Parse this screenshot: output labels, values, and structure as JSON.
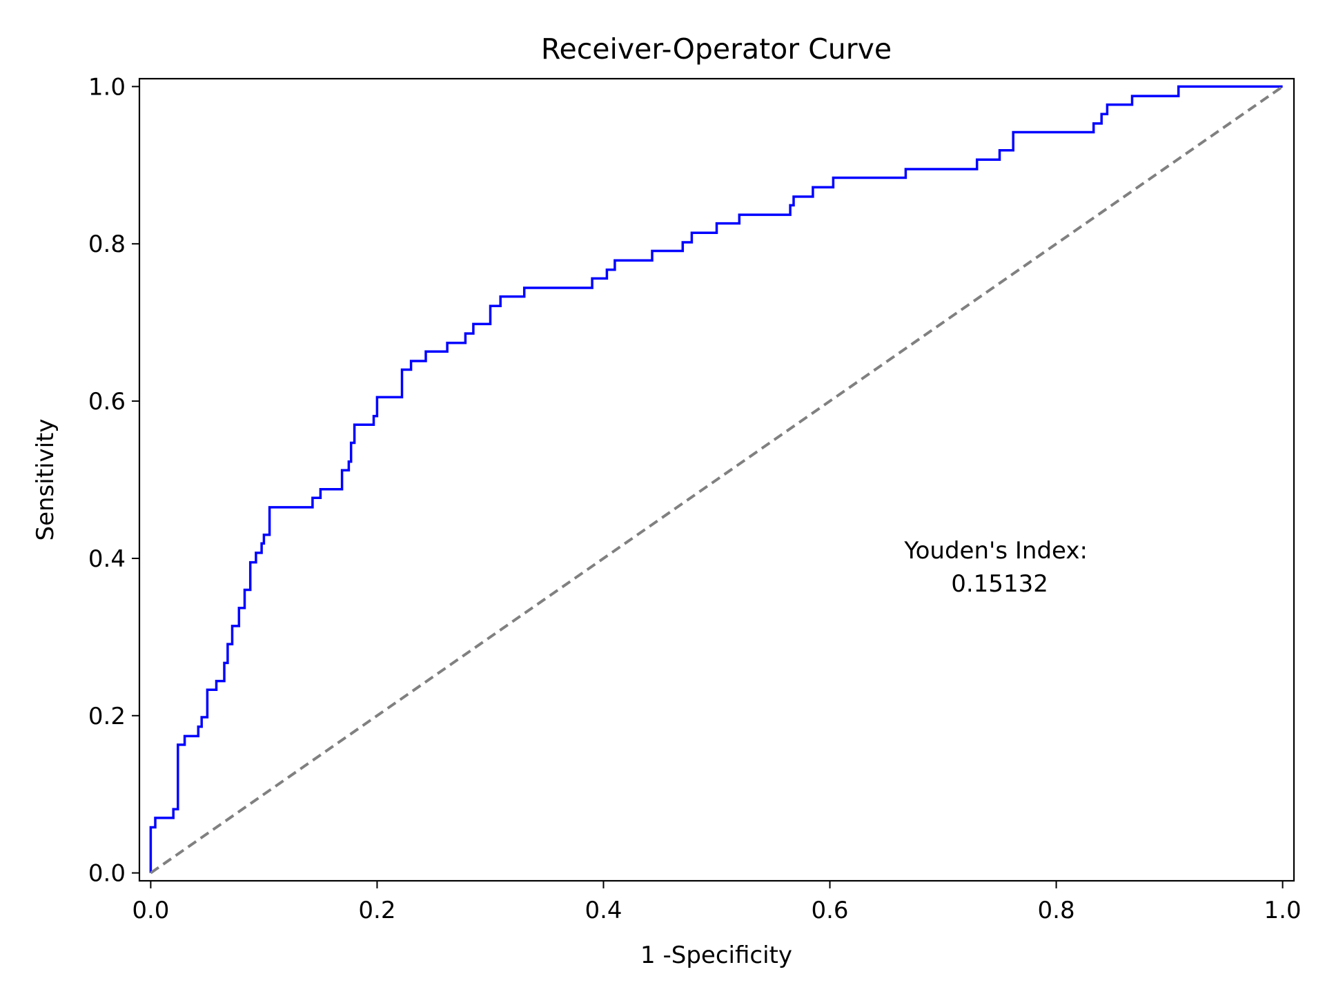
{
  "chart_data": {
    "type": "line",
    "title": "Receiver-Operator Curve",
    "xlabel": "1 -Specificity",
    "ylabel": "Sensitivity",
    "xlim": [
      -0.01,
      1.01
    ],
    "ylim": [
      -0.01,
      1.01
    ],
    "xticks": [
      0.0,
      0.2,
      0.4,
      0.6,
      0.8,
      1.0
    ],
    "xtick_labels": [
      "0.0",
      "0.2",
      "0.4",
      "0.6",
      "0.8",
      "1.0"
    ],
    "yticks": [
      0.0,
      0.2,
      0.4,
      0.6,
      0.8,
      1.0
    ],
    "ytick_labels": [
      "0.0",
      "0.2",
      "0.4",
      "0.6",
      "0.8",
      "1.0"
    ],
    "grid": false,
    "legend": "none",
    "annotation": {
      "lines": [
        "Youden's Index:",
        "0.15132"
      ],
      "x": 0.75,
      "y": 0.37
    },
    "series": [
      {
        "style": "solid",
        "color": "#0000ff",
        "x": [
          0.0,
          0.0,
          0.004,
          0.004,
          0.008,
          0.008,
          0.02,
          0.02,
          0.024,
          0.024,
          0.03,
          0.03,
          0.042,
          0.042,
          0.045,
          0.045,
          0.048,
          0.048,
          0.05,
          0.05,
          0.058,
          0.058,
          0.065,
          0.065,
          0.068,
          0.068,
          0.072,
          0.072,
          0.078,
          0.078,
          0.083,
          0.083,
          0.088,
          0.088,
          0.093,
          0.093,
          0.098,
          0.098,
          0.1,
          0.1,
          0.102,
          0.102,
          0.105,
          0.105,
          0.143,
          0.143,
          0.15,
          0.15,
          0.169,
          0.169,
          0.175,
          0.175,
          0.177,
          0.177,
          0.18,
          0.18,
          0.197,
          0.197,
          0.2,
          0.2,
          0.222,
          0.222,
          0.23,
          0.23,
          0.243,
          0.243,
          0.262,
          0.262,
          0.278,
          0.278,
          0.285,
          0.285,
          0.3,
          0.3,
          0.309,
          0.309,
          0.33,
          0.33,
          0.39,
          0.39,
          0.403,
          0.403,
          0.41,
          0.41,
          0.443,
          0.443,
          0.47,
          0.47,
          0.478,
          0.478,
          0.5,
          0.5,
          0.52,
          0.52,
          0.565,
          0.565,
          0.568,
          0.568,
          0.585,
          0.585,
          0.603,
          0.603,
          0.667,
          0.667,
          0.73,
          0.73,
          0.75,
          0.75,
          0.762,
          0.762,
          0.833,
          0.833,
          0.84,
          0.84,
          0.845,
          0.845,
          0.867,
          0.867,
          0.908,
          0.908,
          0.97,
          0.97,
          1.0
        ],
        "y": [
          0.0,
          0.058,
          0.058,
          0.07,
          0.07,
          0.07,
          0.07,
          0.081,
          0.081,
          0.163,
          0.163,
          0.174,
          0.174,
          0.186,
          0.186,
          0.198,
          0.198,
          0.198,
          0.198,
          0.233,
          0.233,
          0.244,
          0.244,
          0.267,
          0.267,
          0.291,
          0.291,
          0.314,
          0.314,
          0.337,
          0.337,
          0.36,
          0.36,
          0.395,
          0.395,
          0.407,
          0.407,
          0.419,
          0.419,
          0.43,
          0.43,
          0.43,
          0.43,
          0.465,
          0.465,
          0.477,
          0.477,
          0.488,
          0.488,
          0.512,
          0.512,
          0.523,
          0.523,
          0.547,
          0.547,
          0.57,
          0.57,
          0.581,
          0.581,
          0.605,
          0.605,
          0.64,
          0.64,
          0.651,
          0.651,
          0.663,
          0.663,
          0.674,
          0.674,
          0.686,
          0.686,
          0.698,
          0.698,
          0.721,
          0.721,
          0.733,
          0.733,
          0.744,
          0.744,
          0.756,
          0.756,
          0.767,
          0.767,
          0.779,
          0.779,
          0.791,
          0.791,
          0.802,
          0.802,
          0.814,
          0.814,
          0.826,
          0.826,
          0.837,
          0.837,
          0.849,
          0.849,
          0.86,
          0.86,
          0.872,
          0.872,
          0.884,
          0.884,
          0.895,
          0.895,
          0.907,
          0.907,
          0.919,
          0.919,
          0.942,
          0.942,
          0.953,
          0.953,
          0.965,
          0.965,
          0.977,
          0.977,
          0.988,
          0.988,
          1.0,
          1.0,
          1.0,
          1.0
        ]
      },
      {
        "style": "dashed",
        "color": "#808080",
        "x": [
          0.0,
          1.0
        ],
        "y": [
          0.0,
          1.0
        ]
      }
    ]
  }
}
